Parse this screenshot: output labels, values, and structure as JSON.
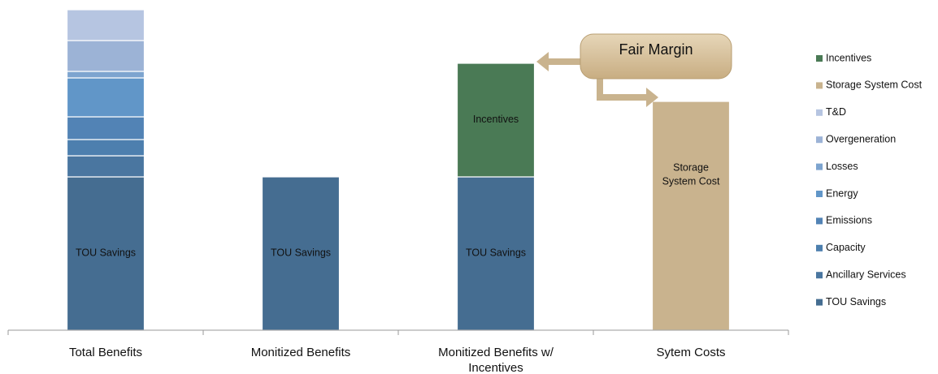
{
  "chart_data": {
    "type": "stacked_bar",
    "categories": [
      "Total Benefits",
      "Monitized Benefits",
      "Monitized Benefits w/ Incentives",
      "Sytem Costs"
    ],
    "ylim": [
      0,
      400
    ],
    "annotation": "Fair Margin",
    "series": [
      {
        "name": "TOU Savings",
        "color": "#456d91",
        "values": [
          189,
          189,
          189,
          null
        ]
      },
      {
        "name": "Ancillary Services",
        "color": "#4a76a0",
        "values": [
          26,
          null,
          null,
          null
        ]
      },
      {
        "name": "Capacity",
        "color": "#4d7fae",
        "values": [
          20,
          null,
          null,
          null
        ]
      },
      {
        "name": "Emissions",
        "color": "#5283b5",
        "values": [
          28,
          null,
          null,
          null
        ]
      },
      {
        "name": "Energy",
        "color": "#6196c8",
        "values": [
          48,
          null,
          null,
          null
        ]
      },
      {
        "name": "Losses",
        "color": "#7da4cf",
        "values": [
          8,
          null,
          null,
          null
        ]
      },
      {
        "name": "Overgeneration",
        "color": "#9cb3d6",
        "values": [
          38,
          null,
          null,
          null
        ]
      },
      {
        "name": "T&D",
        "color": "#b6c5e1",
        "values": [
          38,
          null,
          null,
          null
        ]
      },
      {
        "name": "Storage System Cost",
        "color": "#c9b38e",
        "values": [
          null,
          null,
          null,
          282
        ]
      },
      {
        "name": "Incentives",
        "color": "#4a7a55",
        "values": [
          null,
          null,
          140,
          null
        ]
      }
    ]
  }
}
